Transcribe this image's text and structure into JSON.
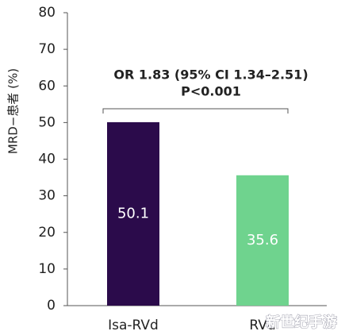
{
  "chart_data": {
    "type": "bar",
    "ylabel": "MRD−患者 (%)",
    "annotations": [
      "OR 1.83 (95% CI 1.34–2.51)",
      "P<0.001"
    ],
    "categories": [
      "Isa-RVd",
      "RVd"
    ],
    "values": [
      50.1,
      35.6
    ],
    "colors": [
      "#2b0b4b",
      "#6fd38e"
    ],
    "ylim": [
      0,
      80
    ],
    "yticks": [
      0,
      10,
      20,
      30,
      40,
      50,
      60,
      70,
      80
    ],
    "grid": false
  },
  "watermark": "新世纪手游"
}
